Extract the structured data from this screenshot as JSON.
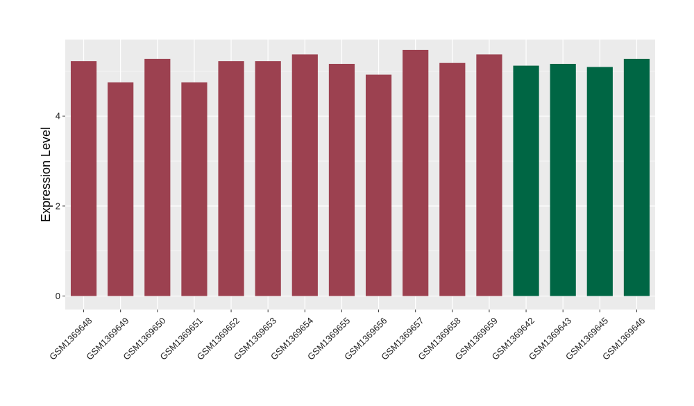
{
  "chart_data": {
    "type": "bar",
    "title": "",
    "xlabel": "",
    "ylabel": "Expression Level",
    "ylim": [
      -0.3,
      5.7
    ],
    "yticks": [
      0,
      2,
      4
    ],
    "grid": true,
    "legend": "none",
    "categories": [
      "GSM1369648",
      "GSM1369649",
      "GSM1369650",
      "GSM1369651",
      "GSM1369652",
      "GSM1369653",
      "GSM1369654",
      "GSM1369655",
      "GSM1369656",
      "GSM1369657",
      "GSM1369658",
      "GSM1369659",
      "GSM1369642",
      "GSM1369643",
      "GSM1369645",
      "GSM1369646"
    ],
    "values": [
      5.22,
      4.75,
      5.27,
      4.75,
      5.22,
      5.22,
      5.37,
      5.16,
      4.92,
      5.47,
      5.18,
      5.37,
      5.12,
      5.16,
      5.09,
      5.27
    ],
    "group_index": [
      0,
      0,
      0,
      0,
      0,
      0,
      0,
      0,
      0,
      0,
      0,
      0,
      1,
      1,
      1,
      1
    ],
    "group_colors": [
      "#9c4150",
      "#006644"
    ],
    "panel_background": "#ebebeb",
    "gridline_color": "#ffffff"
  }
}
